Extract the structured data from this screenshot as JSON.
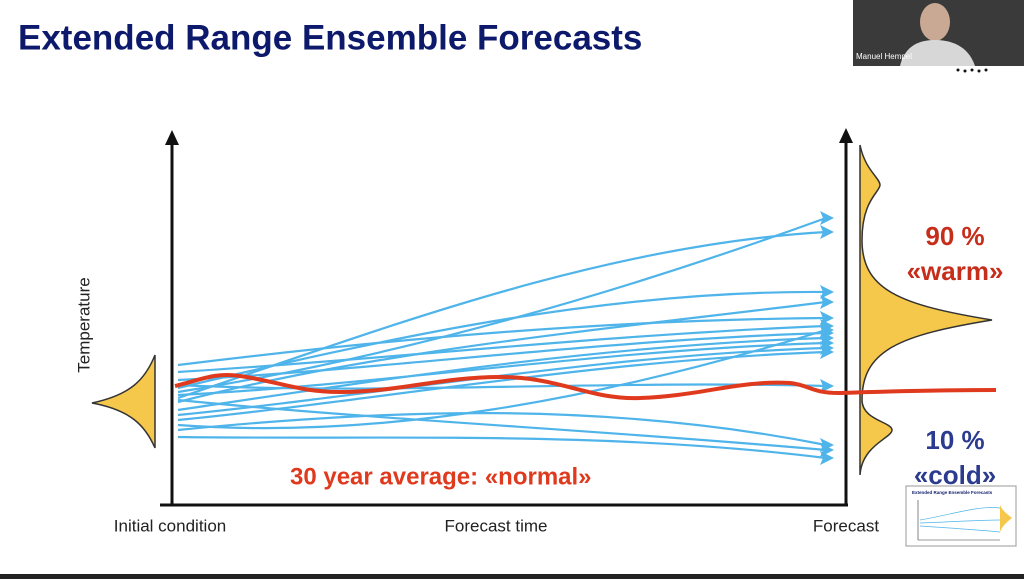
{
  "slide": {
    "title": "Extended Range Ensemble Forecasts",
    "y_axis_label": "Temperature",
    "x_labels": [
      "Initial condition",
      "Forecast time",
      "Forecast"
    ],
    "average_label": "30 year average: «normal»",
    "warm": {
      "share": "90 %",
      "label": "«warm»"
    },
    "cold": {
      "share": "10 %",
      "label": "«cold»"
    }
  },
  "video": {
    "participant": "Manuel Hempel"
  },
  "thumbnail": {
    "title": "Extended Range Ensemble Forecasts"
  }
}
